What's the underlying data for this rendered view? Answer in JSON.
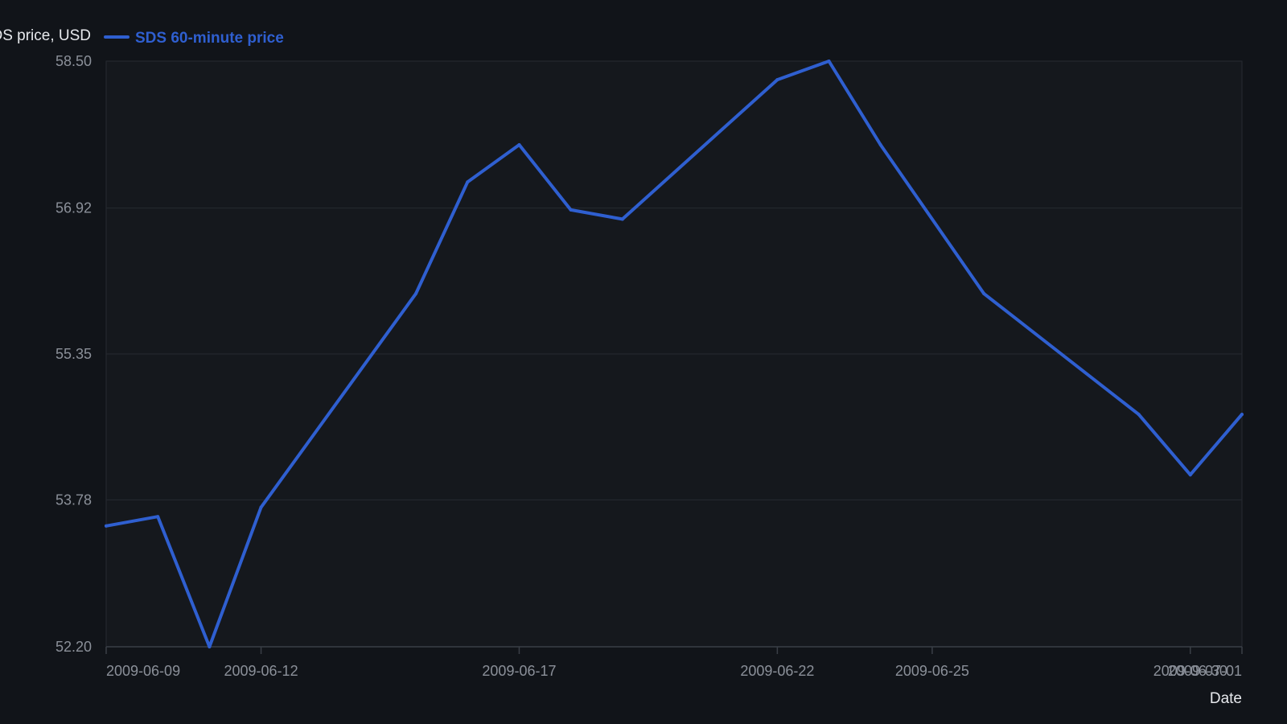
{
  "chart_data": {
    "type": "line",
    "ylabel": "SDS price, USD",
    "xlabel": "Date",
    "legend": {
      "placement": "top-left"
    },
    "grid": {
      "y": true,
      "x": false
    },
    "colors": {
      "background": "#111419",
      "plot_background": "#15181d",
      "grid": "#262a31",
      "axis": "#3a3f47",
      "tick_text": "#8b9099",
      "title_text": "#e6e8ec",
      "series": "#2f5fd0"
    },
    "xlim": [
      "2009-06-09",
      "2009-07-01"
    ],
    "ylim": [
      52.2,
      58.5
    ],
    "y_ticks": [
      "52.20",
      "53.78",
      "55.35",
      "56.92",
      "58.50"
    ],
    "x_ticks": [
      "2009-06-09",
      "2009-06-12",
      "2009-06-17",
      "2009-06-22",
      "2009-06-25",
      "2009-06-30",
      "2009-07-01"
    ],
    "series": [
      {
        "name": "SDS 60-minute price",
        "x": [
          "2009-06-09",
          "2009-06-10",
          "2009-06-11",
          "2009-06-12",
          "2009-06-15",
          "2009-06-16",
          "2009-06-17",
          "2009-06-18",
          "2009-06-19",
          "2009-06-22",
          "2009-06-23",
          "2009-06-24",
          "2009-06-26",
          "2009-06-29",
          "2009-06-30",
          "2009-07-01"
        ],
        "y": [
          53.5,
          53.6,
          52.2,
          53.7,
          56.0,
          57.2,
          57.6,
          56.9,
          56.8,
          58.3,
          58.5,
          57.6,
          56.0,
          54.7,
          54.05,
          54.7
        ]
      }
    ]
  }
}
